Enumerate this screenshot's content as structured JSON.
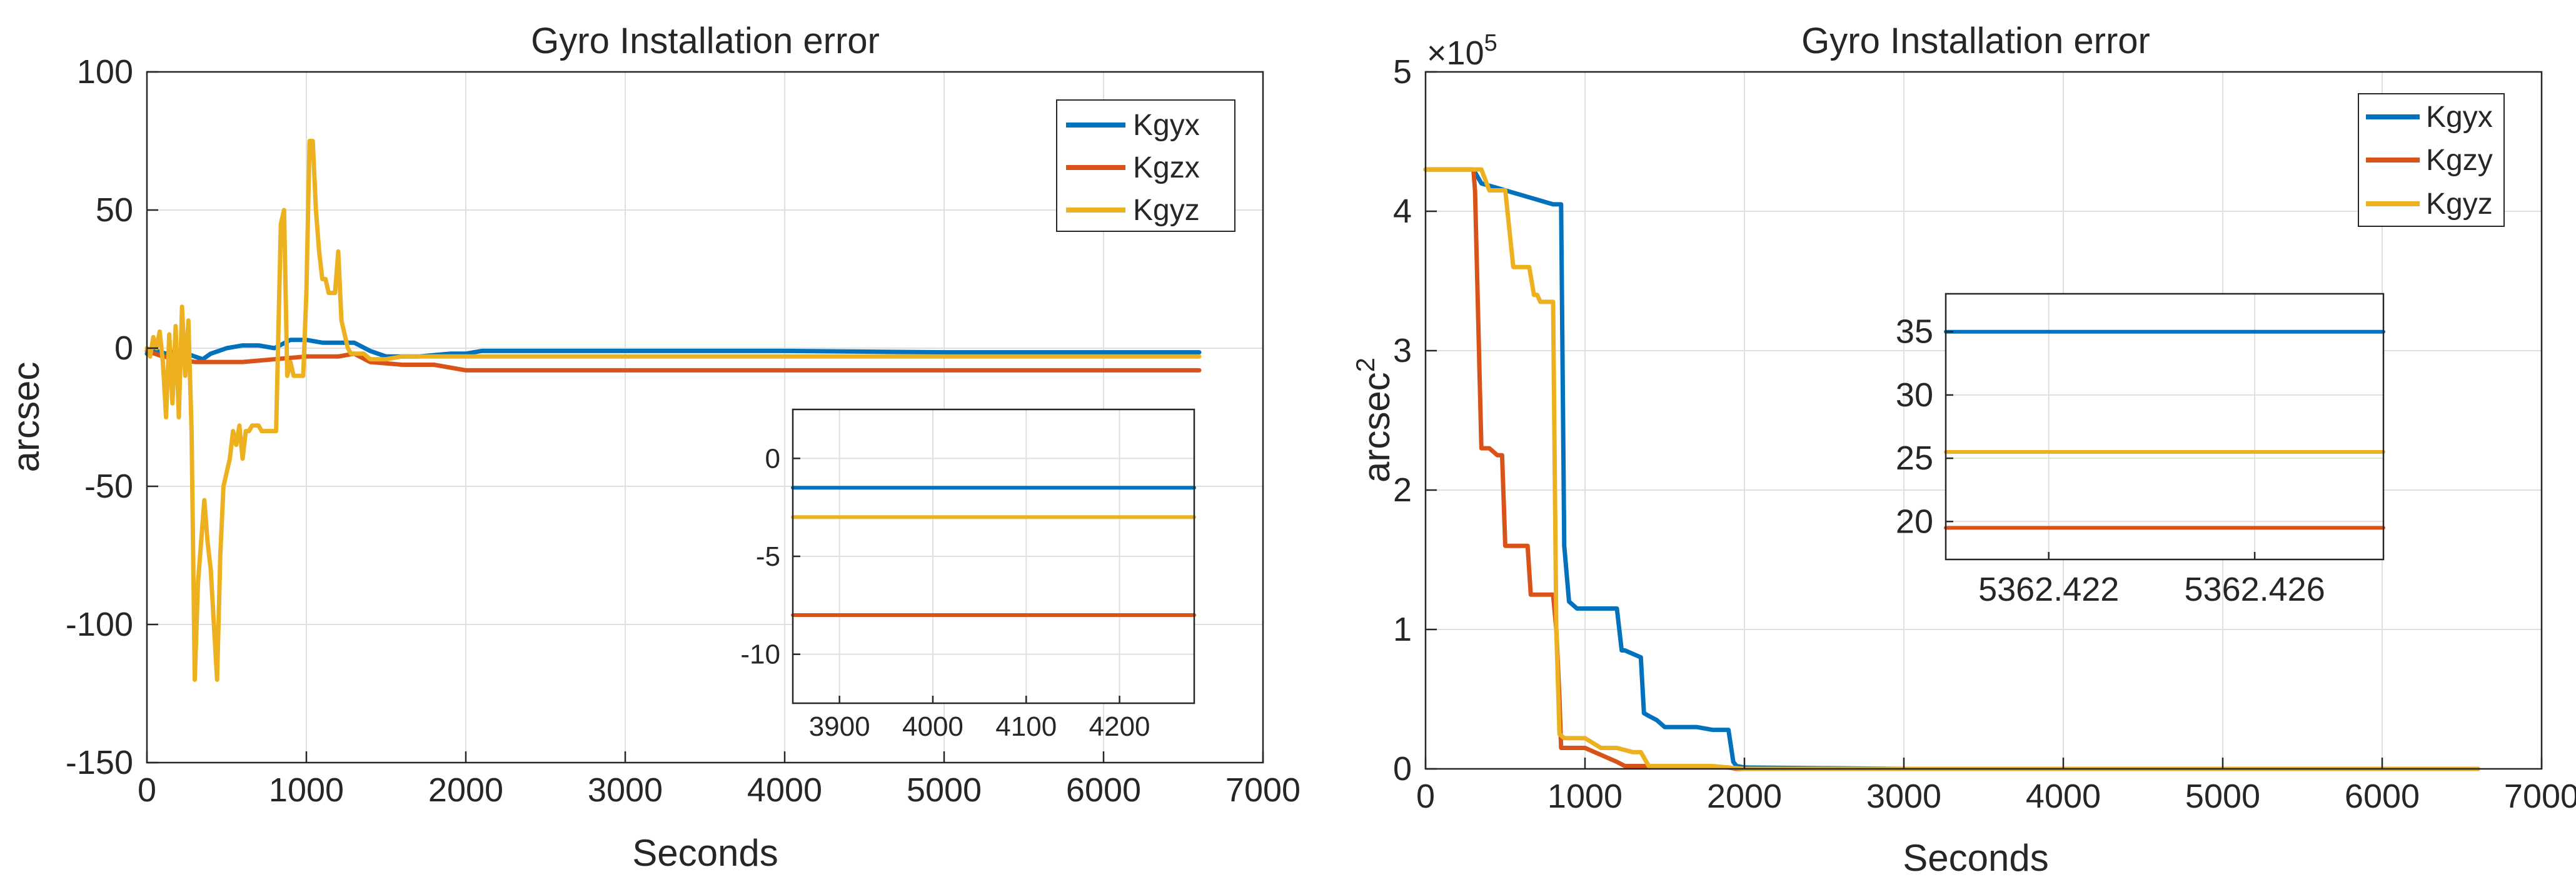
{
  "figure": {
    "colors": {
      "blue": "#0072BD",
      "orange": "#D95319",
      "yellow": "#EDB120",
      "grid": "#dfdfdf",
      "axis": "#262626"
    }
  },
  "chart_data": [
    {
      "type": "line",
      "title": "Gyro Installation error",
      "xlabel": "Seconds",
      "ylabel": "arcsec",
      "xlim": [
        0,
        7000
      ],
      "ylim": [
        -150,
        100
      ],
      "xticks": [
        0,
        1000,
        2000,
        3000,
        4000,
        5000,
        6000,
        7000
      ],
      "yticks": [
        -150,
        -100,
        -50,
        0,
        50,
        100
      ],
      "xtick_labels": [
        "0",
        "1000",
        "2000",
        "3000",
        "4000",
        "5000",
        "6000",
        "7000"
      ],
      "ytick_labels": [
        "-150",
        "-100",
        "-50",
        "0",
        "50",
        "100"
      ],
      "grid": true,
      "legend": {
        "position": "top-right",
        "entries": [
          "Kgyx",
          "Kgzx",
          "Kgyz"
        ]
      },
      "series": [
        {
          "name": "Kgyx",
          "color": "#0072BD",
          "x": [
            0,
            60,
            120,
            180,
            250,
            300,
            350,
            400,
            450,
            500,
            600,
            700,
            800,
            900,
            1000,
            1100,
            1200,
            1300,
            1400,
            1500,
            1700,
            1900,
            2000,
            2100,
            3000,
            4000,
            5000,
            6000,
            6600
          ],
          "y": [
            -2,
            -1,
            -2,
            -1,
            -2,
            -3,
            -4,
            -2,
            -1,
            0,
            1,
            1,
            0,
            3,
            3,
            2,
            2,
            2,
            -1,
            -3,
            -3,
            -2,
            -2,
            -1,
            -1,
            -1,
            -1.5,
            -1.5,
            -1.5
          ]
        },
        {
          "name": "Kgzx",
          "color": "#D95319",
          "x": [
            0,
            100,
            200,
            300,
            400,
            600,
            800,
            1000,
            1200,
            1300,
            1400,
            1600,
            1800,
            1900,
            2000,
            2100,
            3000,
            4000,
            5000,
            6000,
            6600
          ],
          "y": [
            -1,
            -3,
            -4,
            -5,
            -5,
            -5,
            -4,
            -3,
            -3,
            -2,
            -5,
            -6,
            -6,
            -7,
            -8,
            -8,
            -8,
            -8,
            -8,
            -8,
            -8
          ]
        },
        {
          "name": "Kgyz",
          "color": "#EDB120",
          "x": [
            0,
            20,
            40,
            60,
            80,
            100,
            120,
            140,
            160,
            180,
            200,
            220,
            240,
            260,
            280,
            300,
            320,
            340,
            360,
            380,
            400,
            420,
            440,
            460,
            480,
            500,
            520,
            540,
            560,
            580,
            600,
            620,
            640,
            660,
            680,
            700,
            720,
            750,
            780,
            810,
            840,
            860,
            880,
            900,
            920,
            940,
            960,
            980,
            1000,
            1020,
            1040,
            1060,
            1080,
            1100,
            1120,
            1140,
            1160,
            1180,
            1200,
            1220,
            1240,
            1260,
            1280,
            1300,
            1320,
            1340,
            1360,
            1380,
            1400,
            1450,
            1500,
            1600,
            1700,
            1800,
            1900,
            2000,
            3000,
            4000,
            5000,
            6000,
            6600
          ],
          "y": [
            0,
            -3,
            4,
            0,
            6,
            -5,
            -25,
            5,
            -20,
            8,
            -25,
            15,
            -10,
            10,
            -30,
            -120,
            -85,
            -70,
            -55,
            -70,
            -80,
            -100,
            -120,
            -75,
            -50,
            -45,
            -40,
            -30,
            -35,
            -28,
            -40,
            -30,
            -30,
            -28,
            -28,
            -28,
            -30,
            -30,
            -30,
            -30,
            45,
            50,
            -10,
            -5,
            -10,
            -10,
            -10,
            -10,
            20,
            75,
            75,
            50,
            35,
            25,
            25,
            20,
            20,
            20,
            35,
            10,
            5,
            0,
            -2,
            -2,
            -2,
            -2,
            -2,
            -3,
            -4,
            -4,
            -4,
            -3,
            -3,
            -3,
            -3,
            -3,
            -3,
            -3,
            -3,
            -3,
            -3
          ]
        }
      ],
      "inset": {
        "xlim": [
          3850,
          4280
        ],
        "ylim": [
          -12.5,
          2.5
        ],
        "xticks": [
          3900,
          4000,
          4100,
          4200
        ],
        "yticks": [
          0,
          -5,
          -10
        ],
        "xtick_labels": [
          "3900",
          "4000",
          "4100",
          "4200"
        ],
        "ytick_labels": [
          "0",
          "-5",
          "-10"
        ],
        "series": [
          {
            "name": "Kgyx",
            "x": [
              3850,
              4280
            ],
            "y": [
              -1.5,
              -1.5
            ]
          },
          {
            "name": "Kgyz",
            "x": [
              3850,
              4280
            ],
            "y": [
              -3,
              -3
            ]
          },
          {
            "name": "Kgzx",
            "x": [
              3850,
              4280
            ],
            "y": [
              -8,
              -8
            ]
          }
        ]
      }
    },
    {
      "type": "line",
      "title": "Gyro Installation error",
      "xlabel": "Seconds",
      "ylabel": "arcsec",
      "ylabel_superscript": "2",
      "exponent_label": "×10",
      "exponent_power": "5",
      "xlim": [
        0,
        7000
      ],
      "ylim": [
        0,
        5
      ],
      "xticks": [
        0,
        1000,
        2000,
        3000,
        4000,
        5000,
        6000,
        7000
      ],
      "yticks": [
        0,
        1,
        2,
        3,
        4,
        5
      ],
      "xtick_labels": [
        "0",
        "1000",
        "2000",
        "3000",
        "4000",
        "5000",
        "6000",
        "7000"
      ],
      "ytick_labels": [
        "0",
        "1",
        "2",
        "3",
        "4",
        "5"
      ],
      "grid": true,
      "legend": {
        "position": "top-right",
        "entries": [
          "Kgyx",
          "Kgzy",
          "Kgyz"
        ]
      },
      "series": [
        {
          "name": "Kgyx",
          "color": "#0072BD",
          "x": [
            0,
            300,
            350,
            500,
            650,
            800,
            850,
            870,
            900,
            950,
            1000,
            1100,
            1200,
            1230,
            1250,
            1350,
            1370,
            1400,
            1450,
            1500,
            1600,
            1700,
            1800,
            1900,
            1930,
            1950,
            2000,
            3000,
            6600
          ],
          "y": [
            4.3,
            4.3,
            4.2,
            4.15,
            4.1,
            4.05,
            4.05,
            1.6,
            1.2,
            1.15,
            1.15,
            1.15,
            1.15,
            0.85,
            0.85,
            0.8,
            0.4,
            0.38,
            0.35,
            0.3,
            0.3,
            0.3,
            0.28,
            0.28,
            0.05,
            0.02,
            0.01,
            0.0,
            0.0
          ]
        },
        {
          "name": "Kgzy",
          "color": "#D95319",
          "x": [
            0,
            300,
            310,
            350,
            400,
            450,
            480,
            500,
            550,
            600,
            640,
            660,
            700,
            750,
            800,
            820,
            840,
            850,
            900,
            1000,
            1200,
            1250,
            1400,
            1600,
            1900,
            1950,
            6600
          ],
          "y": [
            4.3,
            4.3,
            4.15,
            2.3,
            2.3,
            2.25,
            2.25,
            1.6,
            1.6,
            1.6,
            1.6,
            1.25,
            1.25,
            1.25,
            1.25,
            1.0,
            0.5,
            0.15,
            0.15,
            0.15,
            0.05,
            0.02,
            0.02,
            0.02,
            0.01,
            0.0,
            0.0
          ]
        },
        {
          "name": "Kgyz",
          "color": "#EDB120",
          "x": [
            0,
            350,
            400,
            500,
            550,
            600,
            650,
            680,
            700,
            720,
            750,
            800,
            820,
            840,
            870,
            900,
            950,
            1000,
            1100,
            1150,
            1200,
            1300,
            1350,
            1400,
            1500,
            1800,
            1900,
            2000,
            6600
          ],
          "y": [
            4.3,
            4.3,
            4.15,
            4.15,
            3.6,
            3.6,
            3.6,
            3.4,
            3.4,
            3.35,
            3.35,
            3.35,
            1.0,
            0.25,
            0.22,
            0.22,
            0.22,
            0.22,
            0.15,
            0.15,
            0.15,
            0.12,
            0.12,
            0.02,
            0.02,
            0.02,
            0.01,
            0.0,
            0.0
          ]
        }
      ],
      "inset": {
        "xlim": [
          5362.42,
          5362.4285
        ],
        "ylim": [
          17,
          38
        ],
        "xticks": [
          5362.422,
          5362.426
        ],
        "yticks": [
          20,
          25,
          30,
          35
        ],
        "xtick_labels": [
          "5362.422",
          "5362.426"
        ],
        "ytick_labels": [
          "20",
          "25",
          "30",
          "35"
        ],
        "series": [
          {
            "name": "Kgyx",
            "x": [
              5362.42,
              5362.4285
            ],
            "y": [
              35,
              35
            ]
          },
          {
            "name": "Kgyz",
            "x": [
              5362.42,
              5362.4285
            ],
            "y": [
              25.5,
              25.5
            ]
          },
          {
            "name": "Kgzy",
            "x": [
              5362.42,
              5362.4285
            ],
            "y": [
              19.5,
              19.5
            ]
          }
        ]
      }
    }
  ]
}
